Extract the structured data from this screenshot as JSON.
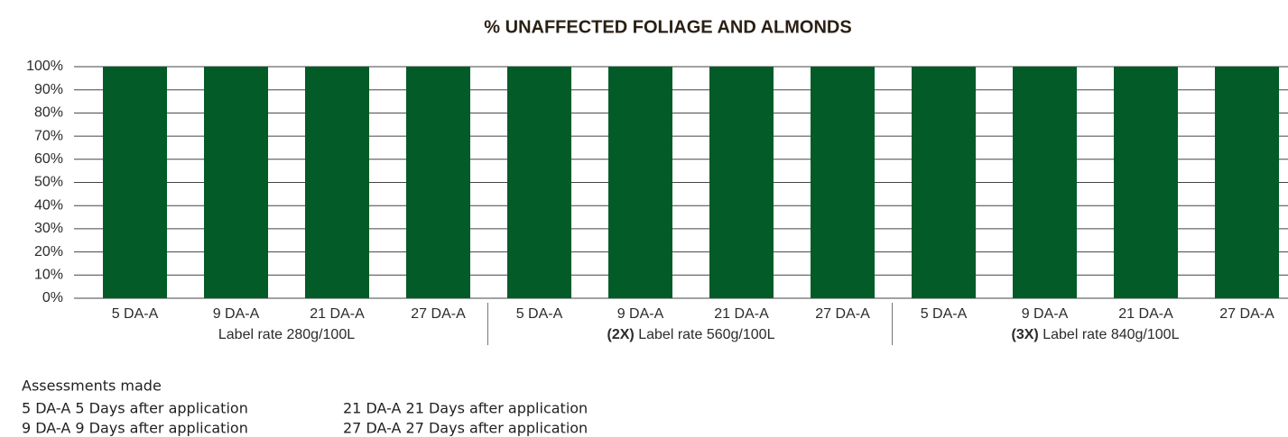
{
  "chart_data": {
    "type": "bar",
    "title": "% UNAFFECTED FOLIAGE AND ALMONDS",
    "categories": [
      "5 DA-A",
      "9 DA-A",
      "21 DA-A",
      "27 DA-A",
      "5 DA-A",
      "9 DA-A",
      "21 DA-A",
      "27 DA-A",
      "5 DA-A",
      "9 DA-A",
      "21 DA-A",
      "27 DA-A"
    ],
    "groups": [
      {
        "name": "Label rate 280g/100L"
      },
      {
        "prefix": "(2X)",
        "name": "Label rate 560g/100L"
      },
      {
        "prefix": "(3X)",
        "name": "Label rate 840g/100L"
      }
    ],
    "values": [
      100,
      100,
      100,
      100,
      100,
      100,
      100,
      100,
      100,
      100,
      100,
      100
    ],
    "color": "#035b27",
    "ylim": [
      0,
      100
    ],
    "yticks": [
      {
        "value": 0,
        "label": "0%"
      },
      {
        "value": 10,
        "label": "10%"
      },
      {
        "value": 20,
        "label": "20%"
      },
      {
        "value": 30,
        "label": "30%"
      },
      {
        "value": 40,
        "label": "40%"
      },
      {
        "value": 50,
        "label": "50%"
      },
      {
        "value": 60,
        "label": "60%"
      },
      {
        "value": 70,
        "label": "70%"
      },
      {
        "value": 80,
        "label": "80%"
      },
      {
        "value": 90,
        "label": "90%"
      },
      {
        "value": 100,
        "label": "100%"
      }
    ],
    "grid": true
  },
  "notes": {
    "title": "Assessments made",
    "items": [
      "5 DA-A 5 Days after application",
      "9 DA-A 9 Days after application",
      "21 DA-A 21 Days after application",
      "27 DA-A 27 Days after application"
    ]
  }
}
